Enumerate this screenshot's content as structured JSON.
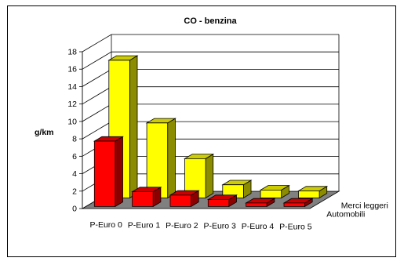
{
  "chart_data": {
    "type": "bar",
    "title": "CO - benzina",
    "ylabel": "g/km",
    "xlabel": "",
    "ylim": [
      0,
      18
    ],
    "yticks": [
      "0",
      "2",
      "4",
      "6",
      "8",
      "10",
      "12",
      "14",
      "16",
      "18"
    ],
    "categories": [
      "P-Euro 0",
      "P-Euro 1",
      "P-Euro 2",
      "P-Euro 3",
      "P-Euro 4",
      "P-Euro 5"
    ],
    "series": [
      {
        "name": "Automobili",
        "color": "#ff0000",
        "values": [
          7.5,
          1.7,
          1.3,
          0.8,
          0.4,
          0.4
        ]
      },
      {
        "name": "Merci leggeri",
        "color": "#ffff00",
        "values": [
          15.8,
          8.6,
          4.5,
          1.5,
          0.9,
          0.8
        ]
      }
    ],
    "grid": true,
    "three_d": true,
    "wall_color": "#ffffff",
    "floor_color": "#808080"
  }
}
